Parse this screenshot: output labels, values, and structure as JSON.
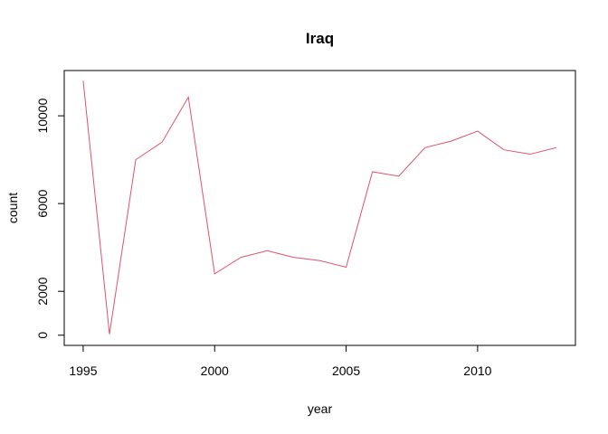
{
  "chart_data": {
    "type": "line",
    "title": "Iraq",
    "xlabel": "year",
    "ylabel": "count",
    "x": [
      1995,
      1996,
      1997,
      1998,
      1999,
      2000,
      2001,
      2002,
      2003,
      2004,
      2005,
      2006,
      2007,
      2008,
      2009,
      2010,
      2011,
      2012,
      2013
    ],
    "series": [
      {
        "values": [
          11600,
          50,
          8000,
          8800,
          10850,
          2800,
          3550,
          3850,
          3550,
          3400,
          3100,
          7450,
          7250,
          8550,
          8850,
          9300,
          8450,
          8250,
          8550
        ],
        "color": "#DF536B"
      }
    ],
    "xlim": [
      1994.28,
      2013.72
    ],
    "ylim": [
      -464,
      12064
    ],
    "xticks": [
      1995,
      2000,
      2005,
      2010
    ],
    "yticks": [
      0,
      2000,
      6000,
      10000
    ],
    "grid": false,
    "legend": "none"
  }
}
